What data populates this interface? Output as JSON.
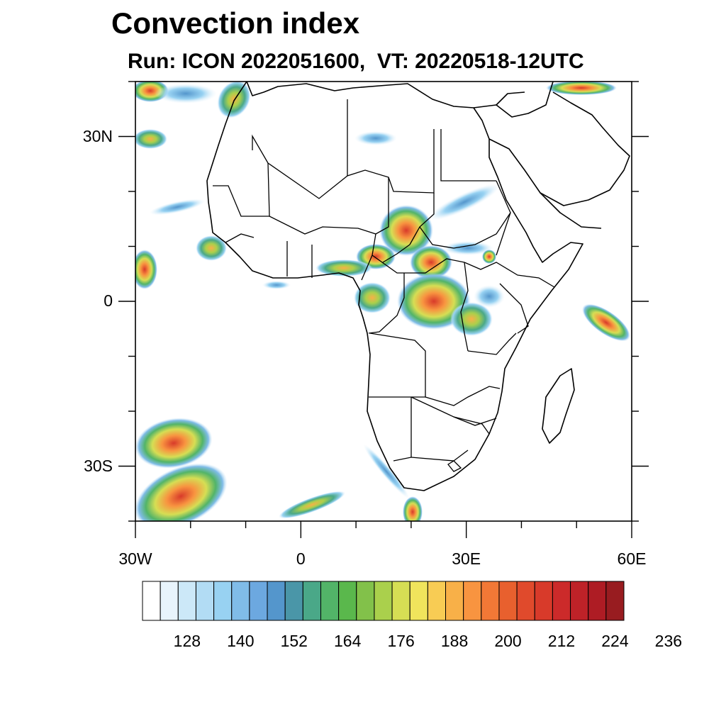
{
  "header": {
    "title": "Convection index",
    "subtitle": "Run: ICON 2022051600,  VT: 20220518-12UTC"
  },
  "map": {
    "region": "Africa",
    "lon_range": [
      -30,
      60
    ],
    "lat_range": [
      -40,
      40
    ],
    "lat_ticks": [
      {
        "value": 30,
        "label": "30N"
      },
      {
        "value": 0,
        "label": "0"
      },
      {
        "value": -30,
        "label": "30S"
      }
    ],
    "lon_ticks": [
      {
        "value": -30,
        "label": "30W"
      },
      {
        "value": 0,
        "label": "0"
      },
      {
        "value": 30,
        "label": "30E"
      },
      {
        "value": 60,
        "label": "60E"
      }
    ]
  },
  "colorbar": {
    "colors": [
      "#ffffff",
      "#e8f4fc",
      "#cce8f8",
      "#b2dcf4",
      "#98d2f2",
      "#80bce8",
      "#6ca8e0",
      "#5496cc",
      "#4a96a8",
      "#4aa888",
      "#52b468",
      "#5ab84c",
      "#82c14a",
      "#aad04c",
      "#d6de54",
      "#f0e45c",
      "#f8cc54",
      "#f8b048",
      "#f89440",
      "#f27836",
      "#e8602e",
      "#e04a2c",
      "#d83a2a",
      "#cc2a2a",
      "#be2228",
      "#ae1c24",
      "#981c20"
    ],
    "labels": [
      "128",
      "140",
      "152",
      "164",
      "176",
      "188",
      "200",
      "212",
      "224",
      "236"
    ]
  }
}
